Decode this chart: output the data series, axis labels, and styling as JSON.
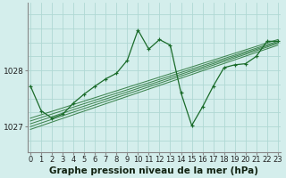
{
  "title": "Graphe pression niveau de la mer (hPa)",
  "bg_color": "#d4eeec",
  "grid_color": "#b0d8d4",
  "line_color": "#1a6b2a",
  "ylabel_ticks": [
    1027,
    1028
  ],
  "x_labels": [
    "0",
    "1",
    "2",
    "3",
    "4",
    "5",
    "6",
    "7",
    "8",
    "9",
    "10",
    "11",
    "12",
    "13",
    "14",
    "15",
    "16",
    "17",
    "18",
    "19",
    "20",
    "21",
    "22",
    "23"
  ],
  "linear_series": [
    [
      [
        0,
        23
      ],
      [
        1027.15,
        1028.55
      ]
    ],
    [
      [
        0,
        23
      ],
      [
        1027.1,
        1028.52
      ]
    ],
    [
      [
        0,
        23
      ],
      [
        1027.05,
        1028.5
      ]
    ],
    [
      [
        0,
        23
      ],
      [
        1027.0,
        1028.48
      ]
    ],
    [
      [
        0,
        23
      ],
      [
        1026.95,
        1028.45
      ]
    ]
  ],
  "main_series_x": [
    0,
    1,
    2,
    3,
    4,
    5,
    6,
    7,
    8,
    9,
    10,
    11,
    12,
    13,
    14,
    15,
    16,
    17,
    18,
    19,
    20,
    21,
    22,
    23
  ],
  "main_series_y": [
    1027.72,
    1027.28,
    1027.15,
    1027.22,
    1027.42,
    1027.58,
    1027.72,
    1027.85,
    1027.95,
    1028.18,
    1028.72,
    1028.38,
    1028.55,
    1028.45,
    1027.6,
    1027.02,
    1027.35,
    1027.72,
    1028.05,
    1028.1,
    1028.12,
    1028.25,
    1028.52,
    1028.52
  ],
  "ylim": [
    1026.55,
    1029.2
  ],
  "xlim": [
    -0.3,
    23.3
  ],
  "title_fontsize": 7.5,
  "tick_fontsize": 6.5
}
